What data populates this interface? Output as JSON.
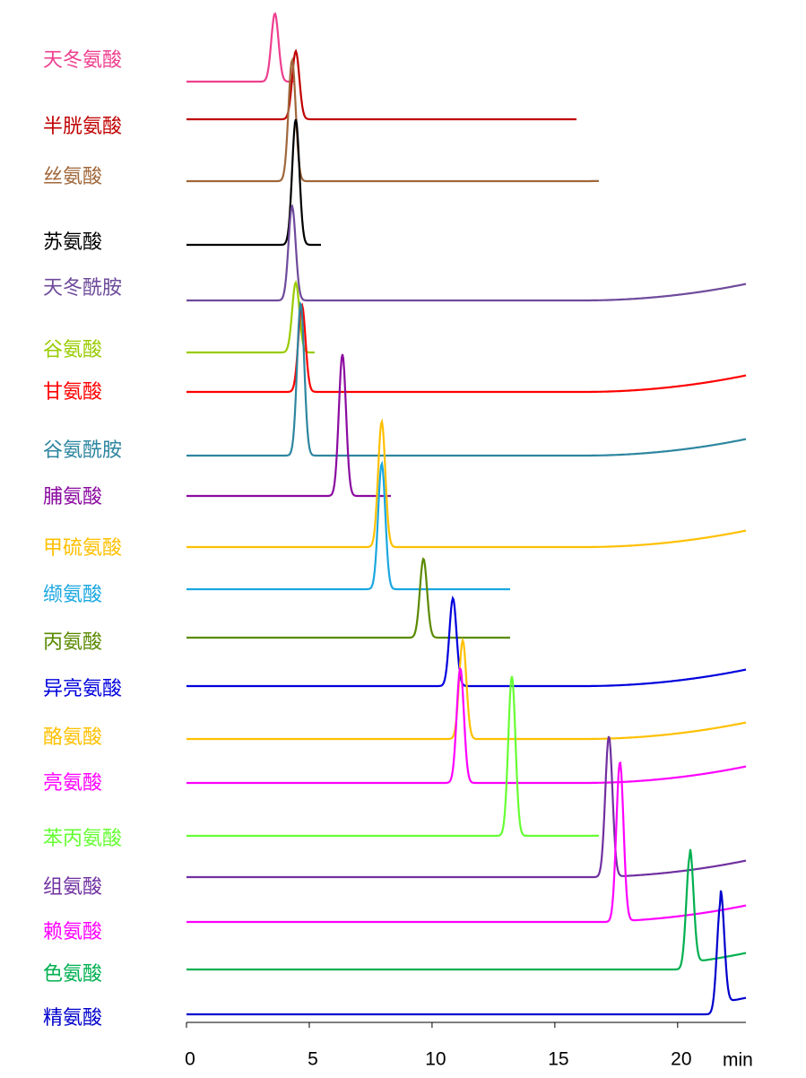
{
  "chart_data": {
    "type": "chromatogram",
    "xlabel": "min",
    "xlim": [
      0,
      23
    ],
    "xticks": [
      0,
      5,
      10,
      15,
      20
    ],
    "series": [
      {
        "name": "天冬氨酸",
        "color": "#ee3f8f",
        "peak": 3.6,
        "end": 4.4
      },
      {
        "name": "半胱氨酸",
        "color": "#c00000",
        "peak": 4.45,
        "end": 15.9
      },
      {
        "name": "丝氨酸",
        "color": "#a0673a",
        "peak": 4.3,
        "end": 16.8
      },
      {
        "name": "苏氨酸",
        "color": "#000000",
        "peak": 4.45,
        "end": 5.5
      },
      {
        "name": "天冬酰胺",
        "color": "#6e4a9b",
        "peak": 4.3,
        "end": 22.8
      },
      {
        "name": "谷氨酸",
        "color": "#99cc00",
        "peak": 4.45,
        "end": 5.25
      },
      {
        "name": "甘氨酸",
        "color": "#ff0000",
        "peak": 4.7,
        "end": 22.8
      },
      {
        "name": "谷氨酰胺",
        "color": "#2e86a0",
        "peak": 4.65,
        "end": 22.8
      },
      {
        "name": "脯氨酸",
        "color": "#8b0aa0",
        "peak": 6.35,
        "end": 8.35
      },
      {
        "name": "甲硫氨酸",
        "color": "#ffc000",
        "peak": 7.95,
        "end": 22.8
      },
      {
        "name": "缬氨酸",
        "color": "#1aa7e0",
        "peak": 7.95,
        "end": 13.2
      },
      {
        "name": "丙氨酸",
        "color": "#5a8a00",
        "peak": 9.65,
        "end": 13.2
      },
      {
        "name": "异亮氨酸",
        "color": "#0000dd",
        "peak": 10.85,
        "end": 22.8
      },
      {
        "name": "酪氨酸",
        "color": "#ffc000",
        "peak": 11.25,
        "end": 22.8
      },
      {
        "name": "亮氨酸",
        "color": "#ff00ff",
        "peak": 11.15,
        "end": 22.8
      },
      {
        "name": "苯丙氨酸",
        "color": "#66ff33",
        "peak": 13.25,
        "end": 16.8
      },
      {
        "name": "组氨酸",
        "color": "#7030a0",
        "peak": 17.2,
        "end": 22.8
      },
      {
        "name": "赖氨酸",
        "color": "#ff00ff",
        "peak": 17.65,
        "end": 22.8
      },
      {
        "name": "色氨酸",
        "color": "#00b050",
        "peak": 20.5,
        "end": 22.8
      },
      {
        "name": "精氨酸",
        "color": "#0000cc",
        "peak": 21.75,
        "end": 22.8
      }
    ]
  }
}
